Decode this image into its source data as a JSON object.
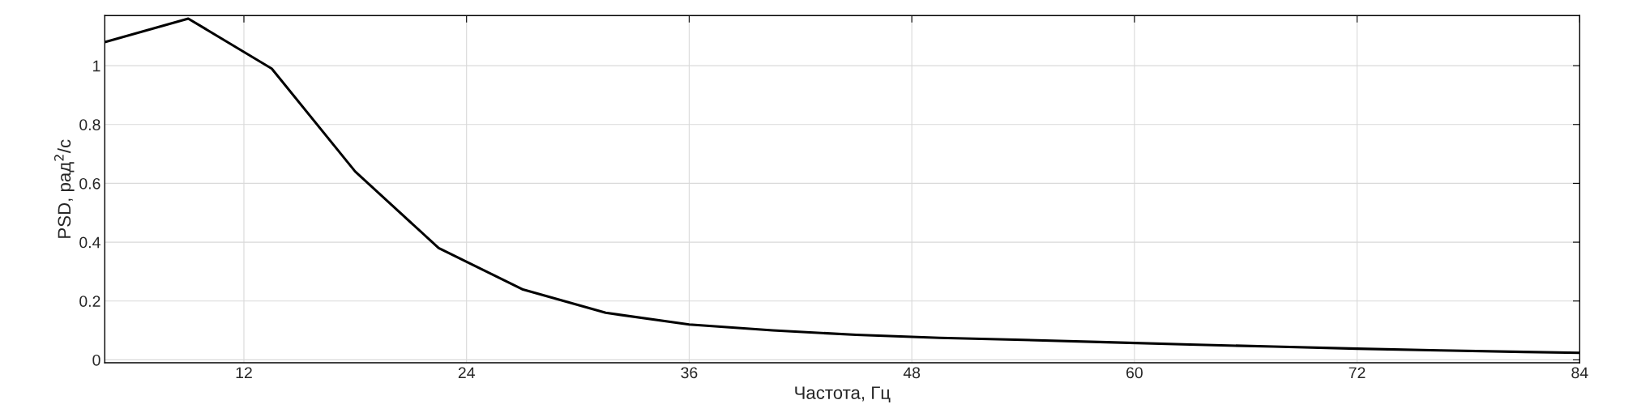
{
  "chart_data": {
    "type": "line",
    "xlabel": "Частота, Гц",
    "ylabel": "PSD, рад$^{2}$/с",
    "x": [
      4.5,
      9,
      13.5,
      18,
      22.5,
      27,
      31.5,
      36,
      40.5,
      45,
      49.5,
      54,
      58.5,
      63,
      67.5,
      72,
      76.5,
      81,
      84
    ],
    "series": [
      {
        "color": "#000000",
        "values": [
          1.08,
          1.16,
          0.99,
          0.64,
          0.38,
          0.24,
          0.16,
          0.12,
          0.1,
          0.085,
          0.075,
          0.068,
          0.06,
          0.052,
          0.045,
          0.038,
          0.032,
          0.027,
          0.024
        ]
      }
    ],
    "xlim": [
      4.5,
      84
    ],
    "xticks": [
      12,
      24,
      36,
      48,
      60,
      72,
      84
    ],
    "ylim": [
      -0.01,
      1.17
    ],
    "yticks": [
      0,
      0.2,
      0.4,
      0.6,
      0.8,
      1
    ],
    "grid": true,
    "marker": "none",
    "line_style": "solid"
  }
}
